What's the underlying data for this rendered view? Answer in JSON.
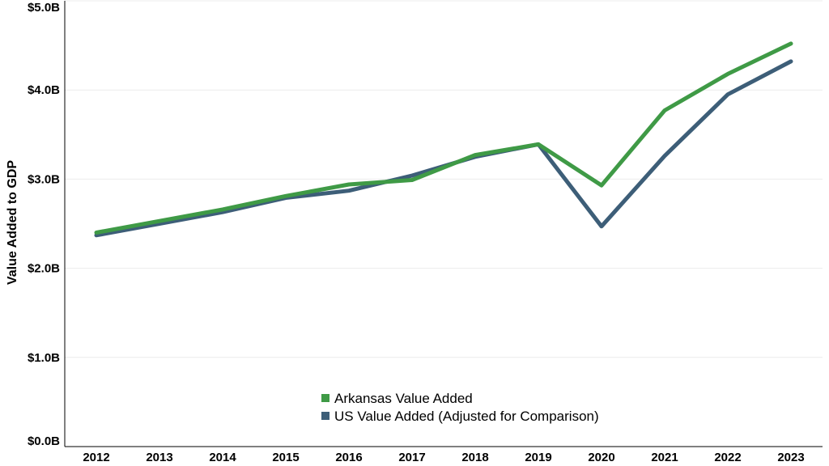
{
  "chart_data": {
    "type": "line",
    "title": "",
    "xlabel": "",
    "ylabel": "Value Added to GDP",
    "x": [
      "2012",
      "2013",
      "2014",
      "2015",
      "2016",
      "2017",
      "2018",
      "2019",
      "2020",
      "2021",
      "2022",
      "2023"
    ],
    "y_ticks": [
      "$0.0B",
      "$1.0B",
      "$2.0B",
      "$3.0B",
      "$4.0B",
      "$5.0B"
    ],
    "ylim": [
      0,
      5.0
    ],
    "y_unit": "billions of USD",
    "grid": true,
    "legend_position": "bottom-center",
    "series": [
      {
        "name": "Arkansas Value Added",
        "color": "#3f9a46",
        "values": [
          2.4,
          2.53,
          2.66,
          2.81,
          2.94,
          2.99,
          3.27,
          3.39,
          2.93,
          3.77,
          4.18,
          4.52
        ]
      },
      {
        "name": "US Value Added (Adjusted for Comparison)",
        "color": "#3d5e78",
        "values": [
          2.37,
          2.5,
          2.63,
          2.79,
          2.87,
          3.04,
          3.25,
          3.39,
          2.47,
          3.26,
          3.95,
          4.32
        ]
      }
    ]
  }
}
